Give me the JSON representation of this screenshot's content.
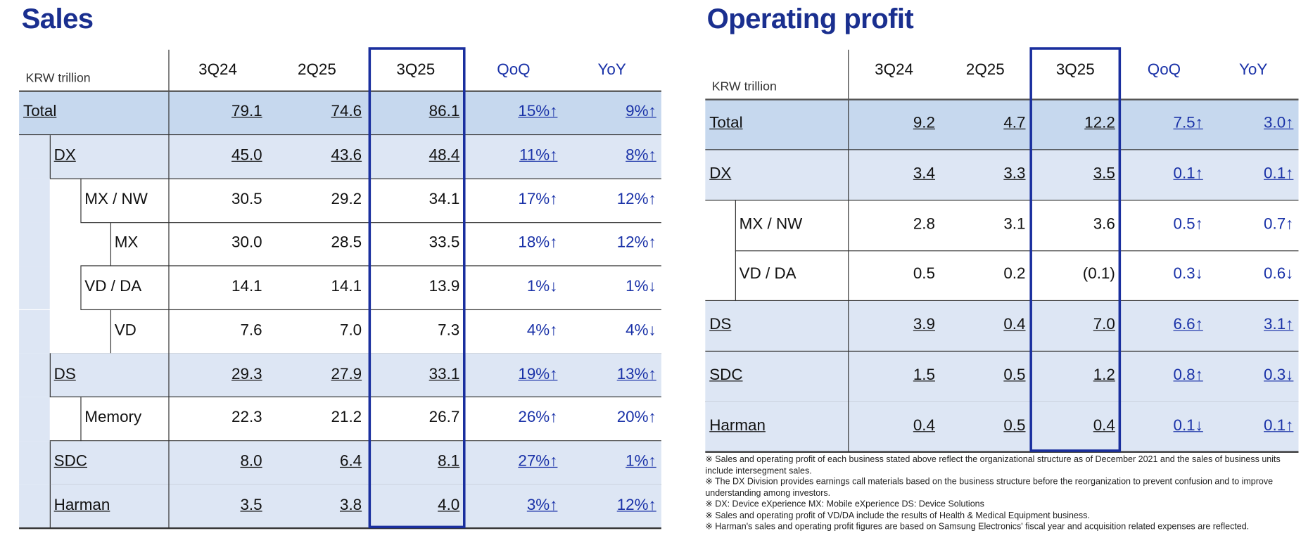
{
  "sales": {
    "title": "Sales",
    "unit": "KRW trillion",
    "columns": [
      "3Q24",
      "2Q25",
      "3Q25",
      "QoQ",
      "YoY"
    ],
    "rows": [
      [
        "Total",
        "79.1",
        "74.6",
        "86.1",
        "15%↑",
        "9%↑"
      ],
      [
        "DX",
        "45.0",
        "43.6",
        "48.4",
        "11%↑",
        "8%↑"
      ],
      [
        "MX / NW",
        "30.5",
        "29.2",
        "34.1",
        "17%↑",
        "12%↑"
      ],
      [
        "MX",
        "30.0",
        "28.5",
        "33.5",
        "18%↑",
        "12%↑"
      ],
      [
        "VD / DA",
        "14.1",
        "14.1",
        "13.9",
        "1%↓",
        "1%↓"
      ],
      [
        "VD",
        "7.6",
        "7.0",
        "7.3",
        "4%↑",
        "4%↓"
      ],
      [
        "DS",
        "29.3",
        "27.9",
        "33.1",
        "19%↑",
        "13%↑"
      ],
      [
        "Memory",
        "22.3",
        "21.2",
        "26.7",
        "26%↑",
        "20%↑"
      ],
      [
        "SDC",
        "8.0",
        "6.4",
        "8.1",
        "27%↑",
        "1%↑"
      ],
      [
        "Harman",
        "3.5",
        "3.8",
        "4.0",
        "3%↑",
        "12%↑"
      ]
    ]
  },
  "operating_profit": {
    "title": "Operating profit",
    "unit": "KRW trillion",
    "columns": [
      "3Q24",
      "2Q25",
      "3Q25",
      "QoQ",
      "YoY"
    ],
    "rows": [
      [
        "Total",
        "9.2",
        "4.7",
        "12.2",
        "7.5↑",
        "3.0↑"
      ],
      [
        "DX",
        "3.4",
        "3.3",
        "3.5",
        "0.1↑",
        "0.1↑"
      ],
      [
        "MX / NW",
        "2.8",
        "3.1",
        "3.6",
        "0.5↑",
        "0.7↑"
      ],
      [
        "VD / DA",
        "0.5",
        "0.2",
        "(0.1)",
        "0.3↓",
        "0.6↓"
      ],
      [
        "DS",
        "3.9",
        "0.4",
        "7.0",
        "6.6↑",
        "3.1↑"
      ],
      [
        "SDC",
        "1.5",
        "0.5",
        "1.2",
        "0.8↑",
        "0.3↓"
      ],
      [
        "Harman",
        "0.4",
        "0.5",
        "0.4",
        "0.1↓",
        "0.1↑"
      ]
    ]
  },
  "footnotes": [
    "※ Sales and operating profit of each business stated above reflect the organizational structure  as of December 2021 and the sales of business units include intersegment sales.",
    "※ The DX Division provides earnings call materials based on the business structure before the reorganization to prevent confusion and to improve understanding among investors.",
    "※ DX: Device eXperience MX: Mobile eXperience DS: Device Solutions",
    "※ Sales and operating profit of VD/DA include the results of Health & Medical Equipment business.",
    "※ Harman's sales and operating profit figures are based on Samsung Electronics' fiscal year and acquisition related expenses  are reflected."
  ]
}
